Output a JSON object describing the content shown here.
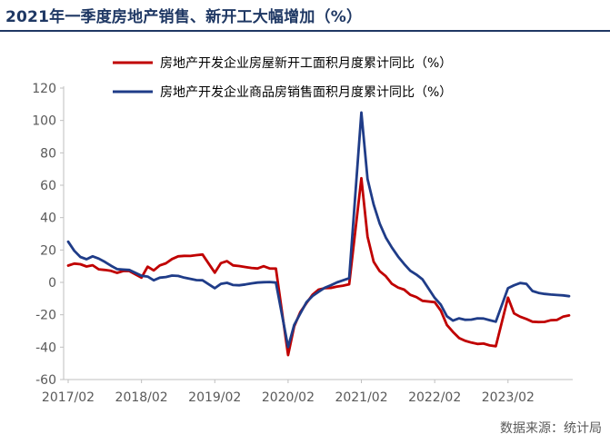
{
  "title": "2021年一季度房地产销售、新开工大幅增加（%）",
  "source": "数据来源：统计局",
  "chart_data": {
    "type": "line",
    "title": "2021年一季度房地产销售、新开工大幅增加（%）",
    "xlabel": "",
    "ylabel": "",
    "ylim": [
      -60,
      120
    ],
    "yticks": [
      -60,
      -40,
      -20,
      0,
      20,
      40,
      60,
      80,
      100,
      120
    ],
    "xlim": [
      "2017/02",
      "2023/12"
    ],
    "xticks": [
      "2017/02",
      "2018/02",
      "2019/02",
      "2020/02",
      "2021/02",
      "2022/02",
      "2023/02"
    ],
    "grid": false,
    "legend_position": "top-right",
    "series": [
      {
        "name": "房地产开发企业房屋新开工面积月度累计同比（%）",
        "color": "#c00000",
        "points": [
          [
            "2017/02",
            10.4
          ],
          [
            "2017/03",
            11.6
          ],
          [
            "2017/04",
            11.2
          ],
          [
            "2017/05",
            9.8
          ],
          [
            "2017/06",
            10.6
          ],
          [
            "2017/07",
            8.1
          ],
          [
            "2017/08",
            7.7
          ],
          [
            "2017/09",
            7.1
          ],
          [
            "2017/10",
            5.9
          ],
          [
            "2017/11",
            7.0
          ],
          [
            "2017/12",
            7.0
          ],
          [
            "2018/02",
            2.9
          ],
          [
            "2018/03",
            9.7
          ],
          [
            "2018/04",
            7.4
          ],
          [
            "2018/05",
            10.5
          ],
          [
            "2018/06",
            11.8
          ],
          [
            "2018/07",
            14.4
          ],
          [
            "2018/08",
            16.1
          ],
          [
            "2018/09",
            16.4
          ],
          [
            "2018/10",
            16.3
          ],
          [
            "2018/11",
            16.8
          ],
          [
            "2018/12",
            17.2
          ],
          [
            "2019/02",
            6.0
          ],
          [
            "2019/03",
            11.9
          ],
          [
            "2019/04",
            13.1
          ],
          [
            "2019/05",
            10.5
          ],
          [
            "2019/06",
            10.1
          ],
          [
            "2019/07",
            9.5
          ],
          [
            "2019/08",
            8.9
          ],
          [
            "2019/09",
            8.6
          ],
          [
            "2019/10",
            10.0
          ],
          [
            "2019/11",
            8.6
          ],
          [
            "2019/12",
            8.5
          ],
          [
            "2020/02",
            -44.9
          ],
          [
            "2020/03",
            -27.2
          ],
          [
            "2020/04",
            -18.4
          ],
          [
            "2020/05",
            -12.8
          ],
          [
            "2020/06",
            -7.6
          ],
          [
            "2020/07",
            -4.5
          ],
          [
            "2020/08",
            -3.6
          ],
          [
            "2020/09",
            -3.4
          ],
          [
            "2020/10",
            -2.6
          ],
          [
            "2020/11",
            -2.0
          ],
          [
            "2020/12",
            -1.2
          ],
          [
            "2021/02",
            64.3
          ],
          [
            "2021/03",
            28.2
          ],
          [
            "2021/04",
            12.8
          ],
          [
            "2021/05",
            6.9
          ],
          [
            "2021/06",
            3.8
          ],
          [
            "2021/07",
            -0.9
          ],
          [
            "2021/08",
            -3.2
          ],
          [
            "2021/09",
            -4.5
          ],
          [
            "2021/10",
            -7.7
          ],
          [
            "2021/11",
            -9.1
          ],
          [
            "2021/12",
            -11.4
          ],
          [
            "2022/02",
            -12.2
          ],
          [
            "2022/03",
            -17.5
          ],
          [
            "2022/04",
            -26.3
          ],
          [
            "2022/05",
            -30.6
          ],
          [
            "2022/06",
            -34.4
          ],
          [
            "2022/07",
            -36.1
          ],
          [
            "2022/08",
            -37.2
          ],
          [
            "2022/09",
            -38.0
          ],
          [
            "2022/10",
            -37.8
          ],
          [
            "2022/11",
            -38.9
          ],
          [
            "2022/12",
            -39.4
          ],
          [
            "2023/02",
            -9.4
          ],
          [
            "2023/03",
            -19.2
          ],
          [
            "2023/04",
            -21.2
          ],
          [
            "2023/05",
            -22.6
          ],
          [
            "2023/06",
            -24.3
          ],
          [
            "2023/07",
            -24.5
          ],
          [
            "2023/08",
            -24.4
          ],
          [
            "2023/09",
            -23.4
          ],
          [
            "2023/10",
            -23.2
          ],
          [
            "2023/11",
            -21.2
          ],
          [
            "2023/12",
            -20.4
          ]
        ]
      },
      {
        "name": "房地产开发企业商品房销售面积月度累计同比（%）",
        "color": "#1f3c88",
        "points": [
          [
            "2017/02",
            25.1
          ],
          [
            "2017/03",
            19.5
          ],
          [
            "2017/04",
            15.7
          ],
          [
            "2017/05",
            14.3
          ],
          [
            "2017/06",
            16.1
          ],
          [
            "2017/07",
            14.7
          ],
          [
            "2017/08",
            12.7
          ],
          [
            "2017/09",
            10.3
          ],
          [
            "2017/10",
            8.2
          ],
          [
            "2017/11",
            7.9
          ],
          [
            "2017/12",
            7.7
          ],
          [
            "2018/02",
            4.1
          ],
          [
            "2018/03",
            3.6
          ],
          [
            "2018/04",
            1.3
          ],
          [
            "2018/05",
            2.9
          ],
          [
            "2018/06",
            3.3
          ],
          [
            "2018/07",
            4.2
          ],
          [
            "2018/08",
            4.0
          ],
          [
            "2018/09",
            2.9
          ],
          [
            "2018/10",
            2.2
          ],
          [
            "2018/11",
            1.4
          ],
          [
            "2018/12",
            1.3
          ],
          [
            "2019/02",
            -3.6
          ],
          [
            "2019/03",
            -0.9
          ],
          [
            "2019/04",
            -0.3
          ],
          [
            "2019/05",
            -1.6
          ],
          [
            "2019/06",
            -1.8
          ],
          [
            "2019/07",
            -1.3
          ],
          [
            "2019/08",
            -0.6
          ],
          [
            "2019/09",
            -0.1
          ],
          [
            "2019/10",
            0.1
          ],
          [
            "2019/11",
            0.2
          ],
          [
            "2019/12",
            -0.1
          ],
          [
            "2020/02",
            -39.9
          ],
          [
            "2020/03",
            -26.3
          ],
          [
            "2020/04",
            -19.3
          ],
          [
            "2020/05",
            -12.3
          ],
          [
            "2020/06",
            -8.4
          ],
          [
            "2020/07",
            -5.8
          ],
          [
            "2020/08",
            -3.3
          ],
          [
            "2020/09",
            -1.8
          ],
          [
            "2020/10",
            0.0
          ],
          [
            "2020/11",
            1.3
          ],
          [
            "2020/12",
            2.6
          ],
          [
            "2021/02",
            104.9
          ],
          [
            "2021/03",
            63.8
          ],
          [
            "2021/04",
            48.1
          ],
          [
            "2021/05",
            36.3
          ],
          [
            "2021/06",
            27.7
          ],
          [
            "2021/07",
            21.5
          ],
          [
            "2021/08",
            15.9
          ],
          [
            "2021/09",
            11.3
          ],
          [
            "2021/10",
            7.2
          ],
          [
            "2021/11",
            4.8
          ],
          [
            "2021/12",
            1.9
          ],
          [
            "2022/02",
            -9.6
          ],
          [
            "2022/03",
            -13.8
          ],
          [
            "2022/04",
            -20.9
          ],
          [
            "2022/05",
            -23.6
          ],
          [
            "2022/06",
            -22.2
          ],
          [
            "2022/07",
            -23.1
          ],
          [
            "2022/08",
            -23.0
          ],
          [
            "2022/09",
            -22.2
          ],
          [
            "2022/10",
            -22.3
          ],
          [
            "2022/11",
            -23.3
          ],
          [
            "2022/12",
            -24.3
          ],
          [
            "2023/02",
            -3.6
          ],
          [
            "2023/03",
            -1.8
          ],
          [
            "2023/04",
            -0.4
          ],
          [
            "2023/05",
            -0.9
          ],
          [
            "2023/06",
            -5.3
          ],
          [
            "2023/07",
            -6.5
          ],
          [
            "2023/08",
            -7.1
          ],
          [
            "2023/09",
            -7.5
          ],
          [
            "2023/10",
            -7.8
          ],
          [
            "2023/11",
            -8.0
          ],
          [
            "2023/12",
            -8.5
          ]
        ]
      }
    ]
  }
}
